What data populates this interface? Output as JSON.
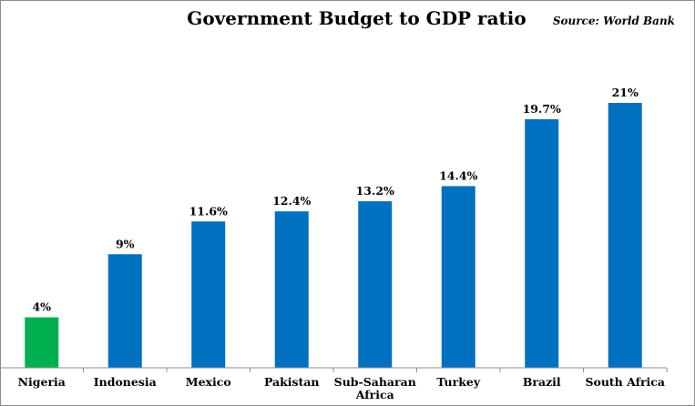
{
  "chart_data": {
    "type": "bar",
    "title": "Government Budget to GDP ratio",
    "source": "Source: World Bank",
    "categories": [
      "Nigeria",
      "Indonesia",
      "Mexico",
      "Pakistan",
      "Sub-Saharan Africa",
      "Turkey",
      "Brazil",
      "South Africa"
    ],
    "values": [
      4,
      9,
      11.6,
      12.4,
      13.2,
      14.4,
      19.7,
      21
    ],
    "data_labels": [
      "4%",
      "9%",
      "11.6%",
      "12.4%",
      "13.2%",
      "14.4%",
      "19.7%",
      "21%"
    ],
    "colors": [
      "#00b050",
      "#0070c0",
      "#0070c0",
      "#0070c0",
      "#0070c0",
      "#0070c0",
      "#0070c0",
      "#0070c0"
    ],
    "ylim": [
      0,
      21
    ],
    "grid": false,
    "legend": "none"
  }
}
